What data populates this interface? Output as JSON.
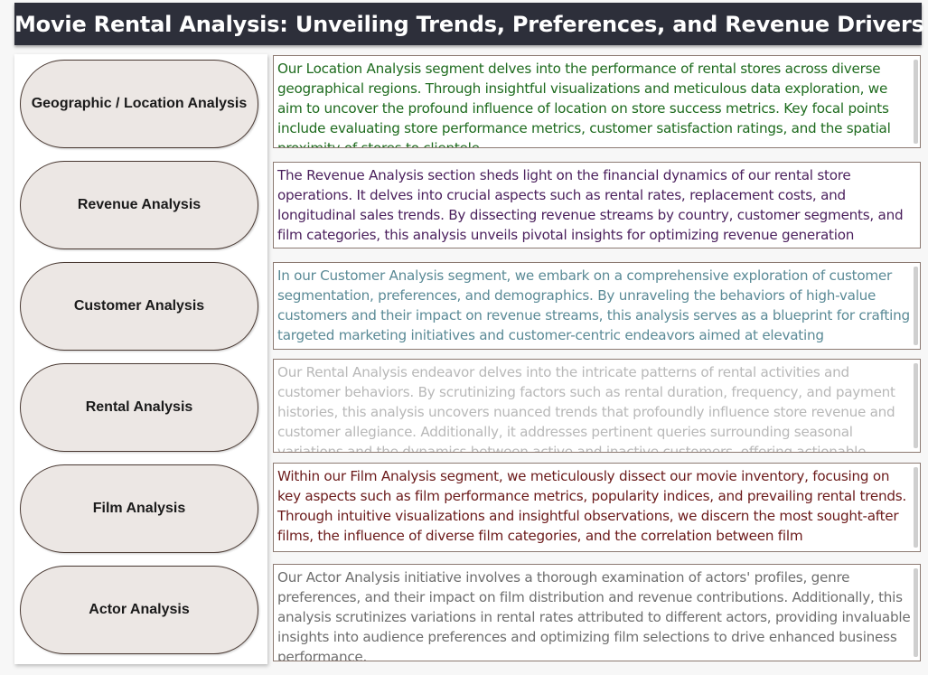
{
  "title": "Movie Rental Analysis: Unveiling Trends, Preferences, and Revenue Drivers",
  "sections": [
    {
      "button_label": "Geographic / Location Analysis",
      "description": "Our Location Analysis segment delves into the performance of rental stores across diverse geographical regions. Through insightful visualizations and meticulous data exploration, we aim to uncover the profound influence of location on store success metrics. Key focal points include evaluating store performance metrics, customer satisfaction ratings, and the spatial proximity of stores to clientele.",
      "text_color": "#1e6b1e"
    },
    {
      "button_label": "Revenue Analysis",
      "description": "The Revenue Analysis section sheds light on the financial dynamics of our rental store operations. It delves into crucial aspects such as rental rates, replacement costs, and longitudinal sales trends. By dissecting revenue streams by country, customer segments, and film categories, this analysis unveils pivotal insights for optimizing revenue generation",
      "text_color": "#4a1f5c"
    },
    {
      "button_label": "Customer Analysis",
      "description": "In our Customer Analysis segment, we embark on a comprehensive exploration of customer segmentation, preferences, and demographics. By unraveling the behaviors of high-value customers and their impact on revenue streams, this analysis serves as a blueprint for crafting targeted marketing initiatives and customer-centric endeavors aimed at elevating",
      "text_color": "#5a8a96"
    },
    {
      "button_label": "Rental Analysis",
      "description": "Our Rental Analysis endeavor delves into the intricate patterns of rental activities and customer behaviors. By scrutinizing factors such as rental duration, frequency, and payment histories, this analysis uncovers nuanced trends that profoundly influence store revenue and customer allegiance. Additionally, it addresses pertinent queries surrounding seasonal variations and the dynamics between active and inactive customers, offering actionable",
      "text_color": "#b8b8b8"
    },
    {
      "button_label": "Film Analysis",
      "description": "Within our Film Analysis segment, we meticulously dissect our movie inventory, focusing on key aspects such as film performance metrics, popularity indices, and prevailing rental trends. Through intuitive visualizations and insightful observations, we discern the most sought-after films, the influence of diverse film categories, and the correlation between film",
      "text_color": "#6b1a1a"
    },
    {
      "button_label": "Actor Analysis",
      "description": "Our Actor Analysis initiative involves a thorough examination of actors' profiles, genre preferences, and their impact on film distribution and revenue contributions. Additionally, this analysis scrutinizes variations in rental rates attributed to different actors, providing invaluable insights into audience preferences and optimizing film selections to drive enhanced business performance.",
      "text_color": "#6e6e6e"
    }
  ]
}
